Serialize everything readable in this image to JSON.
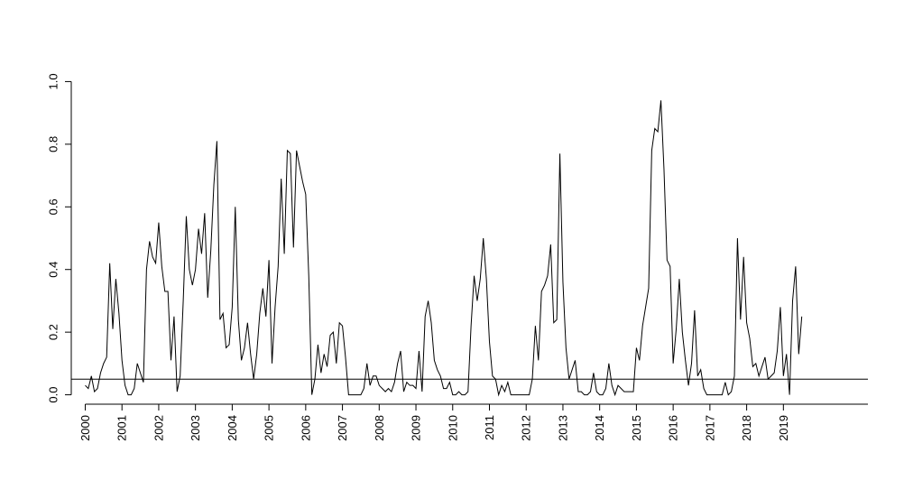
{
  "chart_data": {
    "type": "line",
    "title": "",
    "xlabel": "",
    "ylabel": "",
    "xlim": [
      1999.62,
      2021.3
    ],
    "ylim": [
      -0.03,
      1.03
    ],
    "y_ticks": [
      "0.0",
      "0.2",
      "0.4",
      "0.6",
      "0.8",
      "1.0"
    ],
    "y_tick_values": [
      0,
      0.2,
      0.4,
      0.6,
      0.8,
      1.0
    ],
    "x_ticks": [
      "2000",
      "2001",
      "2002",
      "2003",
      "2004",
      "2005",
      "2006",
      "2007",
      "2008",
      "2009",
      "2010",
      "2011",
      "2012",
      "2013",
      "2014",
      "2015",
      "2016",
      "2017",
      "2018",
      "2019"
    ],
    "x_tick_values": [
      2000,
      2001,
      2002,
      2003,
      2004,
      2005,
      2006,
      2007,
      2008,
      2009,
      2010,
      2011,
      2012,
      2013,
      2014,
      2015,
      2016,
      2017,
      2018,
      2019
    ],
    "reference_line_y": 0.05,
    "grid": false,
    "legend": "none",
    "series": [
      {
        "color": "#000000",
        "x": [
          2000.0,
          2000.083,
          2000.167,
          2000.25,
          2000.333,
          2000.417,
          2000.5,
          2000.583,
          2000.667,
          2000.75,
          2000.833,
          2000.917,
          2001.0,
          2001.083,
          2001.167,
          2001.25,
          2001.333,
          2001.417,
          2001.5,
          2001.583,
          2001.667,
          2001.75,
          2001.833,
          2001.917,
          2002.0,
          2002.083,
          2002.167,
          2002.25,
          2002.333,
          2002.417,
          2002.5,
          2002.583,
          2002.667,
          2002.75,
          2002.833,
          2002.917,
          2003.0,
          2003.083,
          2003.167,
          2003.25,
          2003.333,
          2003.417,
          2003.5,
          2003.583,
          2003.667,
          2003.75,
          2003.833,
          2003.917,
          2004.0,
          2004.083,
          2004.167,
          2004.25,
          2004.333,
          2004.417,
          2004.5,
          2004.583,
          2004.667,
          2004.75,
          2004.833,
          2004.917,
          2005.0,
          2005.083,
          2005.167,
          2005.25,
          2005.333,
          2005.417,
          2005.5,
          2005.583,
          2005.667,
          2005.75,
          2005.833,
          2005.917,
          2006.0,
          2006.083,
          2006.167,
          2006.25,
          2006.333,
          2006.417,
          2006.5,
          2006.583,
          2006.667,
          2006.75,
          2006.833,
          2006.917,
          2007.0,
          2007.083,
          2007.167,
          2007.25,
          2007.333,
          2007.417,
          2007.5,
          2007.583,
          2007.667,
          2007.75,
          2007.833,
          2007.917,
          2008.0,
          2008.083,
          2008.167,
          2008.25,
          2008.333,
          2008.417,
          2008.5,
          2008.583,
          2008.667,
          2008.75,
          2008.833,
          2008.917,
          2009.0,
          2009.083,
          2009.167,
          2009.25,
          2009.333,
          2009.417,
          2009.5,
          2009.583,
          2009.667,
          2009.75,
          2009.833,
          2009.917,
          2010.0,
          2010.083,
          2010.167,
          2010.25,
          2010.333,
          2010.417,
          2010.5,
          2010.583,
          2010.667,
          2010.75,
          2010.833,
          2010.917,
          2011.0,
          2011.083,
          2011.167,
          2011.25,
          2011.333,
          2011.417,
          2011.5,
          2011.583,
          2011.667,
          2011.75,
          2011.833,
          2011.917,
          2012.0,
          2012.083,
          2012.167,
          2012.25,
          2012.333,
          2012.417,
          2012.5,
          2012.583,
          2012.667,
          2012.75,
          2012.833,
          2012.917,
          2013.0,
          2013.083,
          2013.167,
          2013.25,
          2013.333,
          2013.417,
          2013.5,
          2013.583,
          2013.667,
          2013.75,
          2013.833,
          2013.917,
          2014.0,
          2014.083,
          2014.167,
          2014.25,
          2014.333,
          2014.417,
          2014.5,
          2014.583,
          2014.667,
          2014.75,
          2014.833,
          2014.917,
          2015.0,
          2015.083,
          2015.167,
          2015.25,
          2015.333,
          2015.417,
          2015.5,
          2015.583,
          2015.667,
          2015.75,
          2015.833,
          2015.917,
          2016.0,
          2016.083,
          2016.167,
          2016.25,
          2016.333,
          2016.417,
          2016.5,
          2016.583,
          2016.667,
          2016.75,
          2016.833,
          2016.917,
          2017.0,
          2017.083,
          2017.167,
          2017.25,
          2017.333,
          2017.417,
          2017.5,
          2017.583,
          2017.667,
          2017.75,
          2017.833,
          2017.917,
          2018.0,
          2018.083,
          2018.167,
          2018.25,
          2018.333,
          2018.417,
          2018.5,
          2018.583,
          2018.667,
          2018.75,
          2018.833,
          2018.917,
          2019.0,
          2019.083,
          2019.167,
          2019.25,
          2019.333,
          2019.417,
          2019.5
        ],
        "y": [
          0.03,
          0.02,
          0.06,
          0.01,
          0.02,
          0.07,
          0.1,
          0.12,
          0.42,
          0.21,
          0.37,
          0.26,
          0.11,
          0.03,
          0.0,
          0.0,
          0.02,
          0.1,
          0.07,
          0.04,
          0.4,
          0.49,
          0.44,
          0.42,
          0.55,
          0.41,
          0.33,
          0.33,
          0.11,
          0.25,
          0.01,
          0.06,
          0.3,
          0.57,
          0.4,
          0.35,
          0.4,
          0.53,
          0.45,
          0.58,
          0.31,
          0.46,
          0.67,
          0.81,
          0.24,
          0.26,
          0.15,
          0.16,
          0.28,
          0.6,
          0.24,
          0.11,
          0.15,
          0.23,
          0.13,
          0.05,
          0.13,
          0.26,
          0.34,
          0.25,
          0.43,
          0.1,
          0.28,
          0.41,
          0.69,
          0.45,
          0.78,
          0.77,
          0.47,
          0.78,
          0.73,
          0.68,
          0.64,
          0.38,
          0.0,
          0.05,
          0.16,
          0.07,
          0.13,
          0.09,
          0.19,
          0.2,
          0.1,
          0.23,
          0.22,
          0.12,
          0.0,
          0.0,
          0.0,
          0.0,
          0.0,
          0.02,
          0.1,
          0.03,
          0.06,
          0.06,
          0.03,
          0.02,
          0.01,
          0.02,
          0.01,
          0.04,
          0.1,
          0.14,
          0.01,
          0.04,
          0.03,
          0.03,
          0.02,
          0.14,
          0.01,
          0.25,
          0.3,
          0.23,
          0.11,
          0.08,
          0.06,
          0.02,
          0.02,
          0.04,
          0.0,
          0.0,
          0.01,
          0.0,
          0.0,
          0.01,
          0.22,
          0.38,
          0.3,
          0.37,
          0.5,
          0.37,
          0.17,
          0.06,
          0.05,
          0.0,
          0.03,
          0.01,
          0.04,
          0.0,
          0.0,
          0.0,
          0.0,
          0.0,
          0.0,
          0.0,
          0.05,
          0.22,
          0.11,
          0.33,
          0.35,
          0.38,
          0.48,
          0.23,
          0.24,
          0.77,
          0.36,
          0.15,
          0.05,
          0.08,
          0.11,
          0.01,
          0.01,
          0.0,
          0.0,
          0.01,
          0.07,
          0.01,
          0.0,
          0.0,
          0.02,
          0.1,
          0.03,
          0.0,
          0.03,
          0.02,
          0.01,
          0.01,
          0.01,
          0.01,
          0.15,
          0.11,
          0.22,
          0.28,
          0.34,
          0.78,
          0.85,
          0.84,
          0.94,
          0.72,
          0.43,
          0.41,
          0.1,
          0.21,
          0.37,
          0.2,
          0.11,
          0.03,
          0.1,
          0.27,
          0.06,
          0.08,
          0.02,
          0.0,
          0.0,
          0.0,
          0.0,
          0.0,
          0.0,
          0.04,
          0.0,
          0.01,
          0.06,
          0.5,
          0.24,
          0.44,
          0.23,
          0.18,
          0.09,
          0.1,
          0.06,
          0.09,
          0.12,
          0.05,
          0.06,
          0.07,
          0.14,
          0.28,
          0.06,
          0.13,
          0.0,
          0.3,
          0.41,
          0.13,
          0.25
        ]
      }
    ]
  }
}
